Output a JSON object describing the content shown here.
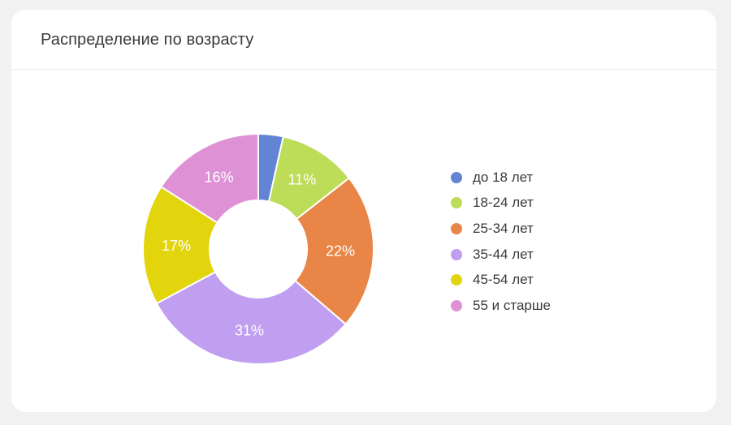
{
  "card": {
    "title": "Распределение по возрасту"
  },
  "chart_data": {
    "type": "pie",
    "donut": true,
    "title": "Распределение по возрасту",
    "categories": [
      "до 18 лет",
      "18-24 лет",
      "25-34 лет",
      "35-44 лет",
      "45-54 лет",
      "55 и старше"
    ],
    "values": [
      3.5,
      11,
      22,
      31,
      17,
      16
    ],
    "labels": [
      "",
      "11%",
      "22%",
      "31%",
      "17%",
      "16%"
    ],
    "colors": [
      "#6383d4",
      "#bddc57",
      "#e98546",
      "#c19ff0",
      "#e2d50d",
      "#de91d4"
    ],
    "legend": "right"
  }
}
